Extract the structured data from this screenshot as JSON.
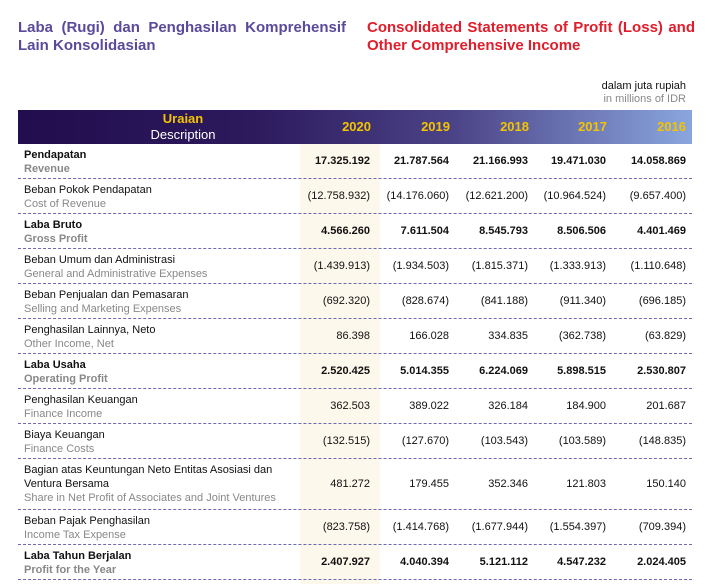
{
  "title_id": "Laba (Rugi) dan Penghasilan Komprehensif Lain Konsolidasian",
  "title_en": "Consolidated Statements of Profit (Loss) and Other Comprehensive Income",
  "unit_id": "dalam juta rupiah",
  "unit_en": "in millions of IDR",
  "header": {
    "label_id": "Uraian",
    "label_en": "Description",
    "years": [
      "2020",
      "2019",
      "2018",
      "2017",
      "2016"
    ]
  },
  "colors": {
    "title_id": "#5b4a9b",
    "title_en": "#e01d2a",
    "header_year": "#f5c400",
    "highlight": "#fdf8ec"
  },
  "rows": [
    {
      "id": "Pendapatan",
      "en": "Revenue",
      "bold": true,
      "values": [
        "17.325.192",
        "21.787.564",
        "21.166.993",
        "19.471.030",
        "14.058.869"
      ]
    },
    {
      "id": "Beban Pokok Pendapatan",
      "en": "Cost of Revenue",
      "bold": false,
      "values": [
        "(12.758.932)",
        "(14.176.060)",
        "(12.621.200)",
        "(10.964.524)",
        "(9.657.400)"
      ]
    },
    {
      "id": "Laba Bruto",
      "en": "Gross Profit",
      "bold": true,
      "values": [
        "4.566.260",
        "7.611.504",
        "8.545.793",
        "8.506.506",
        "4.401.469"
      ]
    },
    {
      "id": "Beban Umum dan Administrasi",
      "en": "General and Administrative Expenses",
      "bold": false,
      "values": [
        "(1.439.913)",
        "(1.934.503)",
        "(1.815.371)",
        "(1.333.913)",
        "(1.110.648)"
      ]
    },
    {
      "id": "Beban Penjualan dan Pemasaran",
      "en": "Selling and Marketing Expenses",
      "bold": false,
      "values": [
        "(692.320)",
        "(828.674)",
        "(841.188)",
        "(911.340)",
        "(696.185)"
      ]
    },
    {
      "id": "Penghasilan Lainnya, Neto",
      "en": "Other Income, Net",
      "bold": false,
      "values": [
        "86.398",
        "166.028",
        "334.835",
        "(362.738)",
        "(63.829)"
      ]
    },
    {
      "id": "Laba Usaha",
      "en": "Operating Profit",
      "bold": true,
      "values": [
        "2.520.425",
        "5.014.355",
        "6.224.069",
        "5.898.515",
        "2.530.807"
      ]
    },
    {
      "id": "Penghasilan Keuangan",
      "en": "Finance Income",
      "bold": false,
      "values": [
        "362.503",
        "389.022",
        "326.184",
        "184.900",
        "201.687"
      ]
    },
    {
      "id": "Biaya Keuangan",
      "en": "Finance Costs",
      "bold": false,
      "values": [
        "(132.515)",
        "(127.670)",
        "(103.543)",
        "(103.589)",
        "(148.835)"
      ]
    },
    {
      "id": "Bagian atas Keuntungan Neto Entitas Asosiasi dan Ventura Bersama",
      "en": "Share in Net Profit of Associates and Joint Ventures",
      "bold": false,
      "tall": true,
      "values": [
        "481.272",
        "179.455",
        "352.346",
        "121.803",
        "150.140"
      ]
    },
    {
      "id": "Beban Pajak Penghasilan",
      "en": "Income Tax Expense",
      "bold": false,
      "values": [
        "(823.758)",
        "(1.414.768)",
        "(1.677.944)",
        "(1.554.397)",
        "(709.394)"
      ]
    },
    {
      "id": "Laba Tahun Berjalan",
      "en": "Profit for the Year",
      "bold": true,
      "values": [
        "2.407.927",
        "4.040.394",
        "5.121.112",
        "4.547.232",
        "2.024.405"
      ]
    }
  ]
}
